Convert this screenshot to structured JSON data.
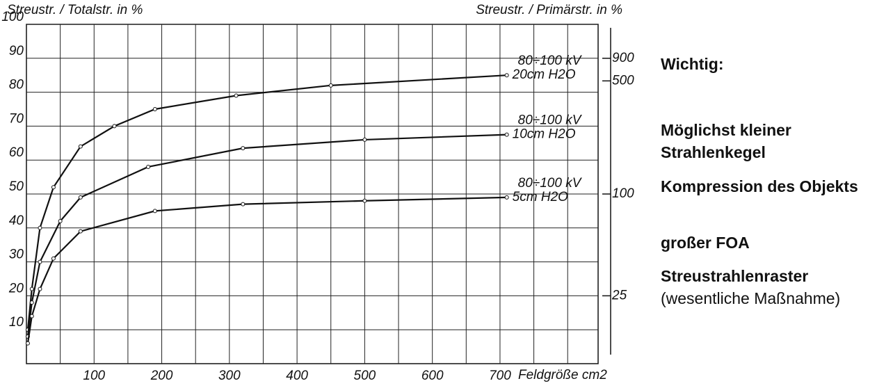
{
  "chart_data": {
    "type": "line",
    "ylabel": "Streustr. / Totalstr. in %",
    "y2label": "Streustr. / Primärstr. in %",
    "xlabel": "Feldgröße cm2",
    "xlim": [
      0,
      845
    ],
    "xticks": [
      100,
      200,
      300,
      400,
      500,
      600,
      700
    ],
    "xgrid": [
      50,
      100,
      150,
      200,
      250,
      300,
      350,
      400,
      450,
      500,
      550,
      600,
      650,
      700,
      750,
      800
    ],
    "ylim": [
      0,
      100
    ],
    "yticks": [
      10,
      20,
      30,
      40,
      50,
      60,
      70,
      80,
      90,
      100
    ],
    "y2ticks": [
      25,
      100,
      500,
      900
    ],
    "y2scale": "ratio",
    "grid": true,
    "series": [
      {
        "name": "20cm H2O",
        "kv": "80÷100 kV",
        "color": "#111",
        "x": [
          2,
          8,
          20,
          40,
          80,
          130,
          190,
          310,
          450,
          710
        ],
        "values": [
          10,
          22,
          40,
          52,
          64,
          70,
          75,
          79,
          82,
          85
        ]
      },
      {
        "name": "10cm H2O",
        "kv": "80÷100 kV",
        "color": "#111",
        "x": [
          2,
          8,
          20,
          50,
          80,
          180,
          320,
          500,
          710
        ],
        "values": [
          8,
          18,
          30,
          42,
          49,
          58,
          63.5,
          66,
          67.5
        ]
      },
      {
        "name": "5cm H2O",
        "kv": "80÷100 kV",
        "color": "#111",
        "x": [
          2,
          8,
          20,
          40,
          80,
          190,
          320,
          500,
          710
        ],
        "values": [
          6,
          14,
          22,
          31,
          39,
          45,
          47,
          48,
          49
        ]
      }
    ]
  },
  "sidebar": {
    "heading": "Wichtig:",
    "items": [
      "Möglichst kleiner Strahlenkegel",
      "Kompression des Objekts",
      "großer FOA",
      "Streustrahlenraster"
    ],
    "note": "(wesentliche Maßnahme)"
  }
}
